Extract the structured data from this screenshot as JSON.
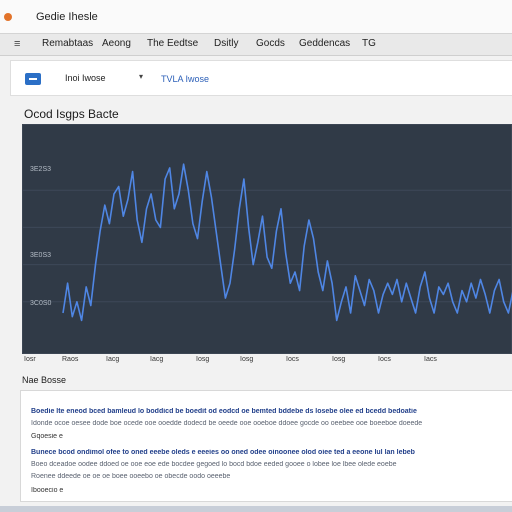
{
  "window": {
    "title": "Gedie Ihesle"
  },
  "menu": {
    "icon": "app-menu-icon",
    "items": [
      "Remabtaas",
      "Aeong",
      "The Eedtse",
      "Dsitly",
      "Gocds",
      "Geddencas",
      "TG"
    ]
  },
  "toolbar": {
    "button_icon": "collapse-icon",
    "dropdown_value": "Inoi Iwose",
    "link_text": "TVLA Iwose"
  },
  "chart_title": "Ocod Isgps Bacte",
  "chart_data": {
    "type": "line",
    "title": "Ocod Isgps Bacte",
    "y_tick_labels": [
      "3E2S3",
      "3E0S3",
      "3C0S0"
    ],
    "x_tick_labels": [
      "Iosr",
      "Raos",
      "Iacg",
      "Iacg",
      "Iosg",
      "Iosg",
      "Iocs",
      "Iosg",
      "Iocs",
      "Iacs"
    ],
    "grid": true,
    "series": [
      {
        "color": "#4f86e4",
        "x": [
          0,
          1,
          2,
          3,
          4,
          5,
          6,
          7,
          8,
          9,
          10,
          11,
          12,
          13,
          14,
          15,
          16,
          17,
          18,
          19,
          20,
          21,
          22,
          23,
          24,
          25,
          26,
          27,
          28,
          29,
          30,
          31,
          32,
          33,
          34,
          35,
          36,
          37,
          38,
          39,
          40,
          41,
          42,
          43,
          44,
          45,
          46,
          47,
          48,
          49,
          50,
          51,
          52,
          53,
          54,
          55,
          56,
          57,
          58,
          59,
          60,
          61,
          62,
          63,
          64,
          65,
          66,
          67,
          68,
          69,
          70,
          71,
          72,
          73,
          74,
          75,
          76,
          77,
          78,
          79,
          80,
          81,
          82,
          83,
          84,
          85,
          86,
          87,
          88,
          89,
          90,
          91,
          92,
          93,
          94,
          95,
          96,
          97
        ],
        "y": [
          0.14,
          0.3,
          0.12,
          0.2,
          0.1,
          0.28,
          0.18,
          0.4,
          0.58,
          0.72,
          0.62,
          0.78,
          0.82,
          0.66,
          0.75,
          0.9,
          0.64,
          0.52,
          0.7,
          0.78,
          0.64,
          0.6,
          0.86,
          0.92,
          0.7,
          0.78,
          0.94,
          0.8,
          0.62,
          0.54,
          0.74,
          0.9,
          0.76,
          0.58,
          0.4,
          0.22,
          0.3,
          0.48,
          0.7,
          0.86,
          0.6,
          0.4,
          0.52,
          0.66,
          0.44,
          0.38,
          0.58,
          0.7,
          0.46,
          0.3,
          0.36,
          0.26,
          0.5,
          0.64,
          0.54,
          0.36,
          0.26,
          0.42,
          0.3,
          0.1,
          0.2,
          0.28,
          0.14,
          0.34,
          0.26,
          0.18,
          0.32,
          0.26,
          0.14,
          0.24,
          0.3,
          0.24,
          0.32,
          0.2,
          0.3,
          0.22,
          0.14,
          0.28,
          0.36,
          0.22,
          0.14,
          0.28,
          0.24,
          0.3,
          0.2,
          0.14,
          0.26,
          0.2,
          0.3,
          0.22,
          0.32,
          0.24,
          0.14,
          0.26,
          0.32,
          0.2,
          0.14,
          0.26
        ],
        "ylim": [
          0,
          1
        ]
      }
    ]
  },
  "section_label": "Nae Bosse",
  "text_panel": {
    "lines": [
      {
        "kind": "head",
        "text": "Boedie lte eneod bced bamleud lo boddicd be boedit od eodcd oe bemted bddebe ds losebe olee ed bcedd bedoatie"
      },
      {
        "kind": "body",
        "text": "Idonde ocoe oesee dode boe ocede ooe ooedde dodecd be oeede ooe ooeboe ddoee gocde oo oeebee ooe boeeboe doeede"
      },
      {
        "kind": "meta",
        "text": "Gqoesie e"
      },
      {
        "kind": "head",
        "text": "Bunece bcod ondimol ofee to oned eeebe oleds e eeeies oo oned odee oinoonee olod oiee ted a eeone lul lan lebeb"
      },
      {
        "kind": "body",
        "text": "Boeo dceadoe oodee ddoed oe ooe eoe ede bocdee gegoed lo bocd bdoe eeded gooee o lobee loe lbee olede eoebe"
      },
      {
        "kind": "body",
        "text": "Roenee ddeede oe oe oe boee ooeebo oe obecde oodo oeeebe"
      },
      {
        "kind": "meta",
        "text": "Ibooecio e"
      }
    ]
  }
}
